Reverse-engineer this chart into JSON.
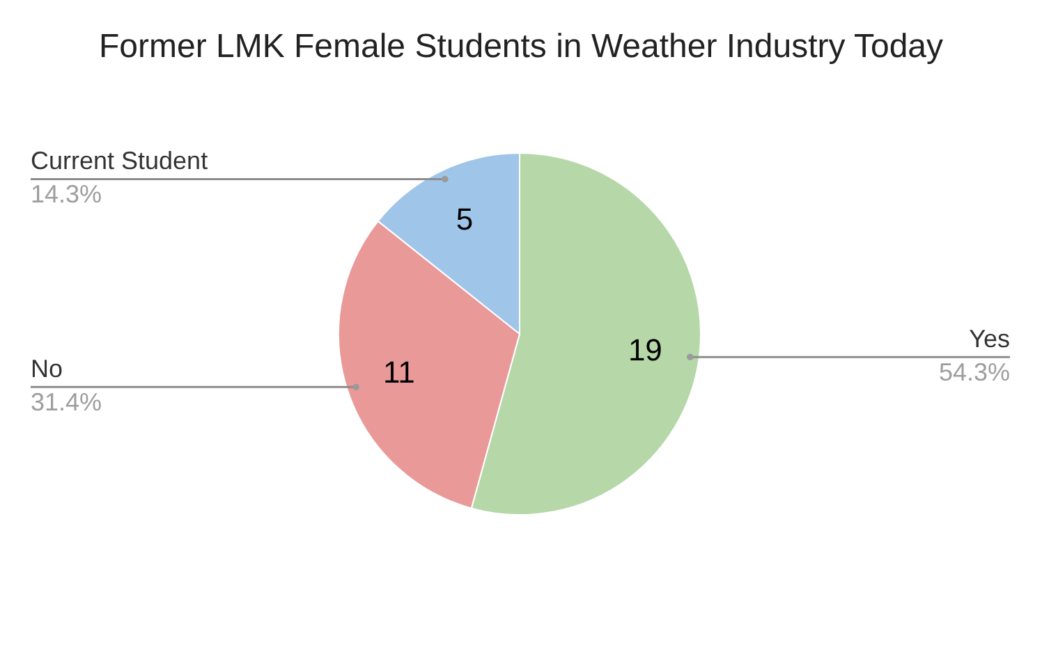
{
  "chart_data": {
    "type": "pie",
    "title": "Former LMK Female Students in Weather Industry Today",
    "categories": [
      "Yes",
      "No",
      "Current Student"
    ],
    "values": [
      19,
      11,
      5
    ],
    "colors": [
      "#b6d7a8",
      "#ea9999",
      "#9fc5e8"
    ],
    "data_labels": true,
    "annotations": [
      "54.3%",
      "31.4%",
      "14.3%"
    ]
  }
}
